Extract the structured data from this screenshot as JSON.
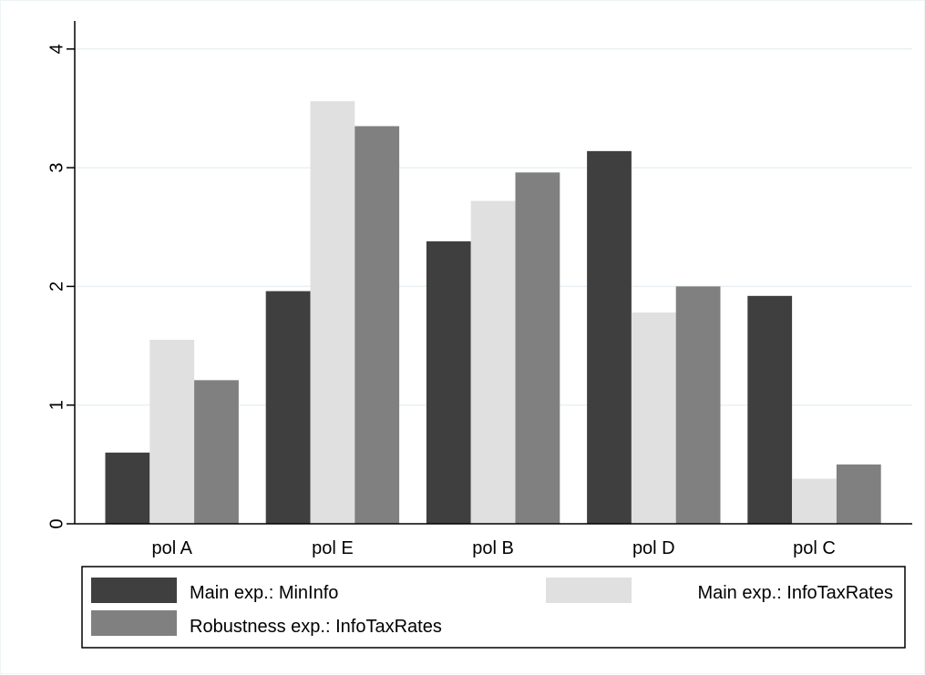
{
  "chart_data": {
    "type": "bar",
    "categories": [
      "pol A",
      "pol E",
      "pol B",
      "pol D",
      "pol C"
    ],
    "series": [
      {
        "name": "Main exp.: MinInfo",
        "color": "#3f3f3f",
        "values": [
          0.6,
          1.96,
          2.38,
          3.14,
          1.92
        ]
      },
      {
        "name": "Main exp.: InfoTaxRates",
        "color": "#e0e0e0",
        "values": [
          1.55,
          3.56,
          2.72,
          1.78,
          0.38
        ]
      },
      {
        "name": "Robustness exp.: InfoTaxRates",
        "color": "#808080",
        "values": [
          1.21,
          3.35,
          2.96,
          2.0,
          0.5
        ]
      }
    ],
    "yticks": [
      "0",
      "1",
      "2",
      "3",
      "4"
    ],
    "ylim": [
      0,
      4
    ],
    "grid": true,
    "legend_position": "bottom"
  }
}
